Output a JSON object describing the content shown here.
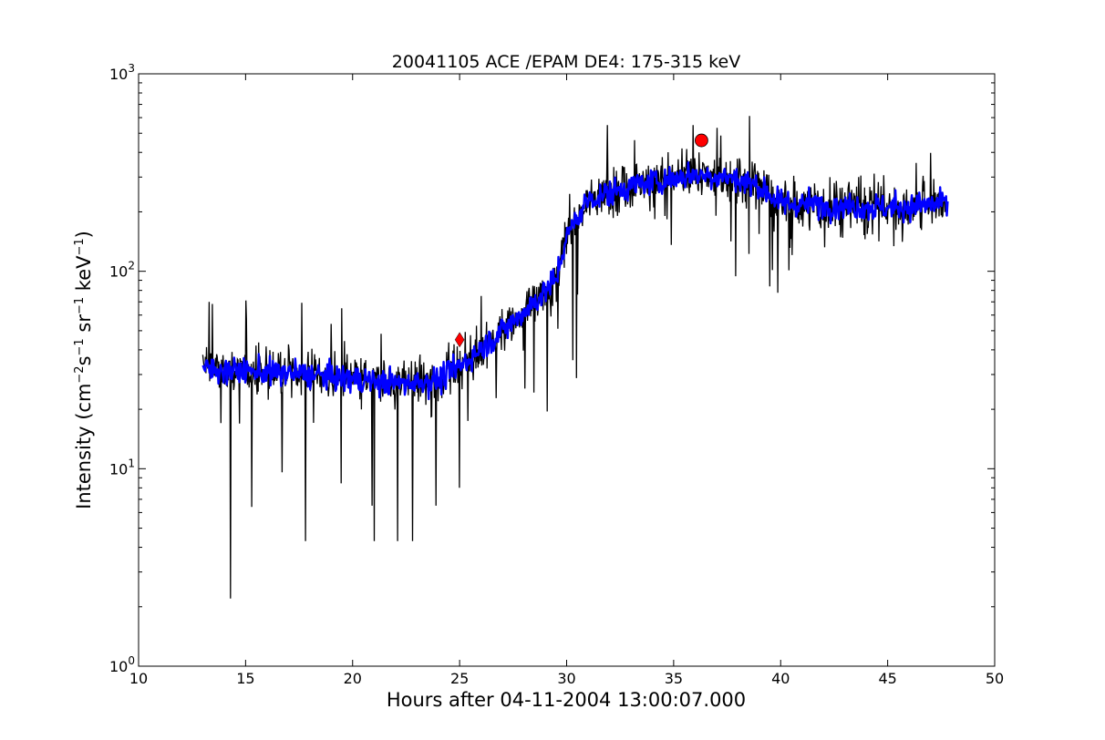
{
  "chart_data": {
    "type": "line",
    "title": "20041105 ACE /EPAM DE4: 175-315 keV",
    "xlabel": "Hours after 04-11-2004 13:00:07.000",
    "ylabel": {
      "prefix": "Intensity (cm",
      "exp1": "−2",
      "mid1": "s",
      "exp2": "−1",
      "mid2": " sr",
      "exp3": "−1",
      "mid3": " keV",
      "exp4": "−1",
      "suffix": ")"
    },
    "xlim": [
      10,
      50
    ],
    "ylim": [
      1,
      1000
    ],
    "yscale": "log",
    "x_ticks": [
      "10",
      "15",
      "20",
      "25",
      "30",
      "35",
      "40",
      "45",
      "50"
    ],
    "y_ticks": [
      {
        "base": "10",
        "exp": "0",
        "value": 1
      },
      {
        "base": "10",
        "exp": "1",
        "value": 10
      },
      {
        "base": "10",
        "exp": "2",
        "value": 100
      },
      {
        "base": "10",
        "exp": "3",
        "value": 1000
      }
    ],
    "grid": false,
    "legend": "none",
    "series": [
      {
        "style": "raw",
        "color": "#000000",
        "x_range": [
          13.0,
          47.8
        ],
        "trend": {
          "x": [
            13.0,
            18.0,
            22.0,
            24.0,
            25.0,
            26.5,
            28.0,
            29.5,
            30.0,
            31.0,
            33.0,
            36.0,
            37.5,
            39.0,
            40.0,
            43.0,
            45.0,
            47.8
          ],
          "y": [
            32,
            30,
            27,
            28,
            33,
            45,
            62,
            90,
            150,
            230,
            270,
            310,
            300,
            270,
            220,
            215,
            210,
            220
          ]
        },
        "spikes_down": [
          [
            14.3,
            2.2
          ],
          [
            15.3,
            6.4
          ],
          [
            17.8,
            4.3
          ],
          [
            20.9,
            6.5
          ],
          [
            21.0,
            4.3
          ],
          [
            22.1,
            4.3
          ],
          [
            22.8,
            4.3
          ],
          [
            23.9,
            6.5
          ],
          [
            25.0,
            8.0
          ],
          [
            29.1,
            19.5
          ]
        ],
        "spikes_up": [
          [
            13.3,
            70
          ],
          [
            19.5,
            65
          ],
          [
            26.0,
            75
          ],
          [
            31.9,
            550
          ],
          [
            35.9,
            550
          ]
        ]
      },
      {
        "style": "smoothed",
        "color": "#0000ff",
        "x_range": [
          13.0,
          47.8
        ],
        "trend": {
          "x": [
            13.0,
            18.0,
            22.0,
            24.0,
            25.0,
            26.5,
            28.0,
            29.5,
            30.0,
            31.0,
            33.0,
            36.0,
            37.5,
            39.0,
            40.0,
            43.0,
            45.0,
            47.8
          ],
          "y": [
            32,
            30,
            27,
            28,
            33,
            45,
            62,
            90,
            150,
            230,
            270,
            310,
            300,
            270,
            220,
            215,
            210,
            220
          ]
        }
      }
    ],
    "markers": [
      {
        "shape": "diamond",
        "color": "#ff0000",
        "x": 25.0,
        "y": 45
      },
      {
        "shape": "circle",
        "color": "#ff0000",
        "x": 36.3,
        "y": 460
      }
    ]
  }
}
